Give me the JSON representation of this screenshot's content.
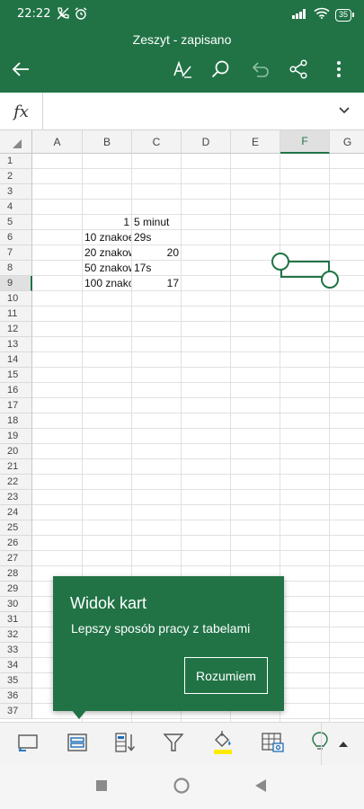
{
  "status": {
    "time": "22:22",
    "battery": "35"
  },
  "header": {
    "title": "Zeszyt - zapisano"
  },
  "formula": {
    "fx": "fx",
    "value": ""
  },
  "columns": [
    "A",
    "B",
    "C",
    "D",
    "E",
    "F",
    "G"
  ],
  "selected_column": "F",
  "rows": [
    "1",
    "2",
    "3",
    "4",
    "5",
    "6",
    "7",
    "8",
    "9",
    "10",
    "11",
    "12",
    "13",
    "14",
    "15",
    "16",
    "17",
    "18",
    "19",
    "20",
    "21",
    "22",
    "23",
    "24",
    "25",
    "26",
    "27",
    "28",
    "29",
    "30",
    "31",
    "32",
    "33",
    "34",
    "35",
    "36",
    "37"
  ],
  "selected_row": "9",
  "cells": [
    {
      "ref": "B5",
      "value": "1",
      "align": "right"
    },
    {
      "ref": "C5",
      "value": "5 minut",
      "align": "left"
    },
    {
      "ref": "B6",
      "value": "10 znakoe",
      "align": "left"
    },
    {
      "ref": "C6",
      "value": "29s",
      "align": "left"
    },
    {
      "ref": "B7",
      "value": "20 znakow",
      "align": "left"
    },
    {
      "ref": "C7",
      "value": "20",
      "align": "right"
    },
    {
      "ref": "B8",
      "value": "50 znakow",
      "align": "left"
    },
    {
      "ref": "C8",
      "value": "17s",
      "align": "left"
    },
    {
      "ref": "B9",
      "value": "100 znako",
      "align": "left"
    },
    {
      "ref": "C9",
      "value": "17",
      "align": "right"
    }
  ],
  "tooltip": {
    "title": "Widok kart",
    "body": "Lepszy sposób pracy z tabelami",
    "button": "Rozumiem"
  },
  "colors": {
    "accent": "#217346",
    "highlight": "#ffeb00"
  },
  "toolbar_icons": [
    "recommended-charts-icon",
    "card-view-icon",
    "sort-icon",
    "filter-icon",
    "fill-color-icon",
    "insert-table-icon",
    "ideas-icon"
  ]
}
